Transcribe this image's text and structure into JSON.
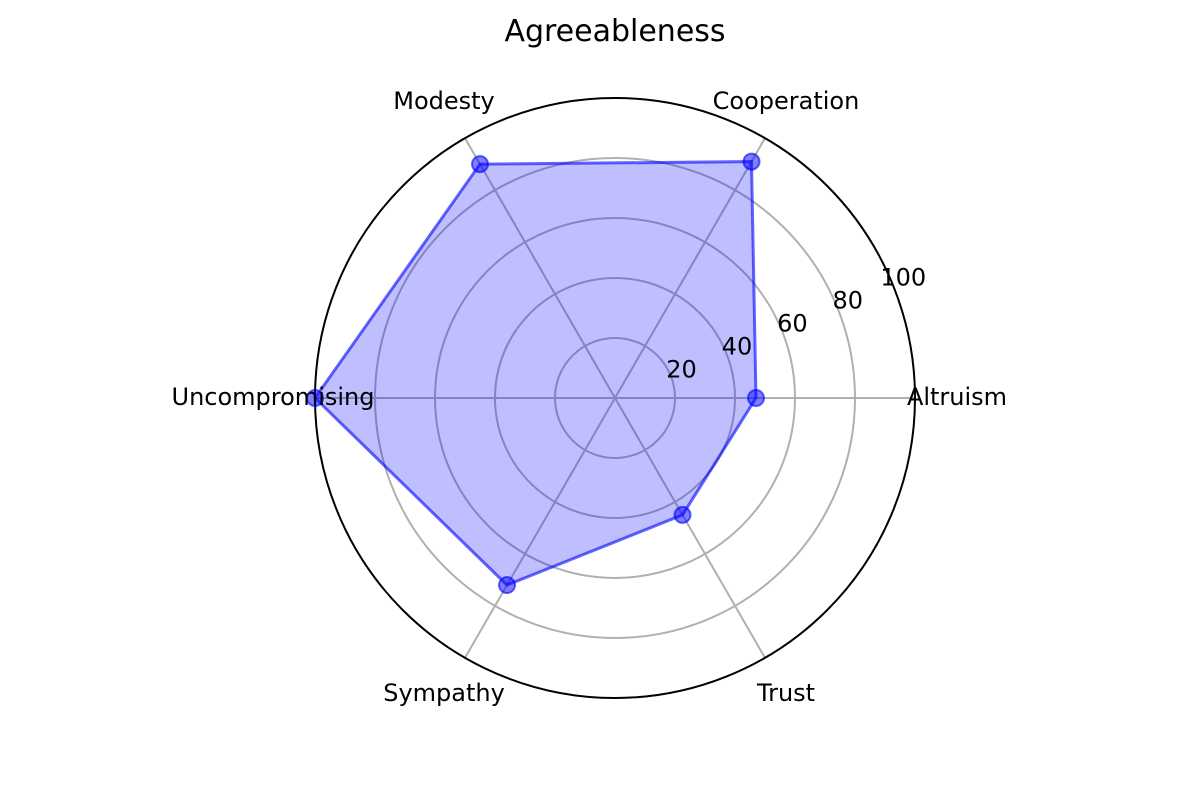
{
  "chart_data": {
    "type": "radar",
    "title": "Agreeableness",
    "categories": [
      "Altruism",
      "Cooperation",
      "Modesty",
      "Uncompromising",
      "Sympathy",
      "Trust"
    ],
    "series": [
      {
        "values": [
          47,
          91,
          90,
          100,
          72,
          45
        ]
      }
    ],
    "r_ticks": [
      20,
      40,
      60,
      80,
      100
    ],
    "r_range": [
      0,
      100
    ],
    "grid": true,
    "colors": {
      "fill": "#0000ff",
      "fill_opacity": 0.25,
      "line": "#0000ff",
      "grid": "#b0b0b0",
      "outer_ring": "#000000"
    }
  }
}
